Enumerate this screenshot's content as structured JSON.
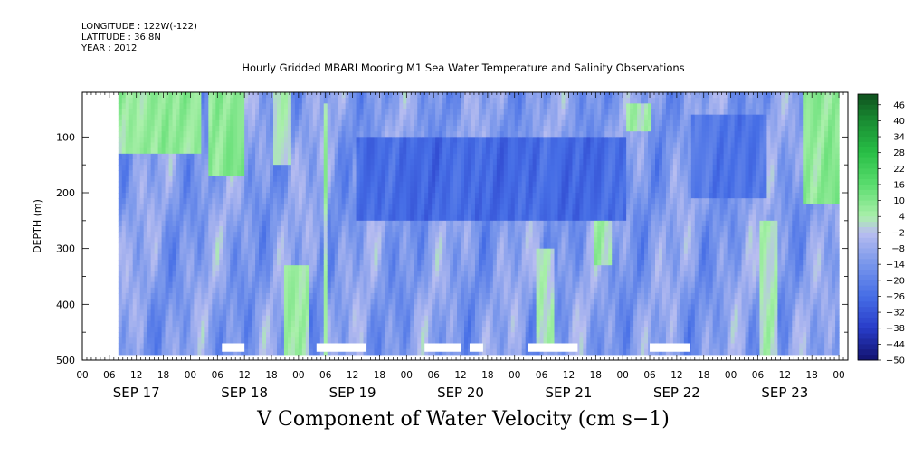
{
  "header": {
    "longitude": "LONGITUDE : 122W(-122)",
    "latitude": "LATITUDE : 36.8N",
    "year": "YEAR : 2012",
    "title": "Hourly Gridded MBARI Mooring M1 Sea Water Temperature and Salinity Observations"
  },
  "footer": {
    "label": "V Component of Water Velocity (cm s−1)"
  },
  "chart_data": {
    "type": "heatmap",
    "title": "Hourly Gridded MBARI Mooring M1 Sea Water Temperature and Salinity Observations",
    "variable": "V Component of Water Velocity (cm s−1)",
    "ylabel": "DEPTH (m)",
    "ylim": [
      500,
      20
    ],
    "y_inverted": true,
    "y_ticks": [
      100,
      200,
      300,
      400,
      500
    ],
    "x_range_hours": [
      0,
      170
    ],
    "x_hour_ticks": [
      "00",
      "06",
      "12",
      "18",
      "00",
      "06",
      "12",
      "18",
      "00",
      "06",
      "12",
      "18",
      "00",
      "06",
      "12",
      "18",
      "00",
      "06",
      "12",
      "18",
      "00",
      "06",
      "12",
      "18",
      "00",
      "06",
      "12",
      "18",
      "00"
    ],
    "x_day_labels": [
      "SEP 17",
      "SEP 18",
      "SEP 19",
      "SEP 20",
      "SEP 21",
      "SEP 22",
      "SEP 23"
    ],
    "data_extent": {
      "x_hours": [
        8,
        168
      ],
      "depth_m": [
        20,
        485
      ]
    },
    "gaps": [
      {
        "x_hours": [
          31,
          36
        ],
        "depth_m": [
          470,
          485
        ]
      },
      {
        "x_hours": [
          52,
          63
        ],
        "depth_m": [
          470,
          485
        ]
      },
      {
        "x_hours": [
          76,
          84
        ],
        "depth_m": [
          470,
          485
        ]
      },
      {
        "x_hours": [
          86,
          89
        ],
        "depth_m": [
          470,
          485
        ]
      },
      {
        "x_hours": [
          99,
          110
        ],
        "depth_m": [
          470,
          485
        ]
      },
      {
        "x_hours": [
          126,
          135
        ],
        "depth_m": [
          470,
          485
        ]
      }
    ],
    "colorbar": {
      "levels": [
        46,
        40,
        34,
        28,
        22,
        16,
        10,
        4,
        -2,
        -8,
        -14,
        -20,
        -26,
        -32,
        -38,
        -44,
        -50
      ],
      "min": -50,
      "max": 50
    },
    "features": [
      {
        "x_hours": [
          8,
          26
        ],
        "depth_m": [
          20,
          120
        ],
        "value_cm_s": 12
      },
      {
        "x_hours": [
          28,
          36
        ],
        "depth_m": [
          20,
          160
        ],
        "value_cm_s": 14
      },
      {
        "x_hours": [
          42,
          46
        ],
        "depth_m": [
          20,
          140
        ],
        "value_cm_s": 8
      },
      {
        "x_hours": [
          53,
          54
        ],
        "depth_m": [
          40,
          480
        ],
        "value_cm_s": 10
      },
      {
        "x_hours": [
          160,
          168
        ],
        "depth_m": [
          20,
          210
        ],
        "value_cm_s": 14
      },
      {
        "x_hours": [
          120,
          126
        ],
        "depth_m": [
          40,
          80
        ],
        "value_cm_s": 8
      },
      {
        "x_hours": [
          60,
          120
        ],
        "depth_m": [
          100,
          240
        ],
        "value_cm_s": -26
      },
      {
        "x_hours": [
          135,
          152
        ],
        "depth_m": [
          60,
          200
        ],
        "value_cm_s": -22
      },
      {
        "x_hours": [
          44,
          50
        ],
        "depth_m": [
          330,
          480
        ],
        "value_cm_s": 10
      },
      {
        "x_hours": [
          100,
          104
        ],
        "depth_m": [
          300,
          470
        ],
        "value_cm_s": 8
      },
      {
        "x_hours": [
          113,
          117
        ],
        "depth_m": [
          250,
          320
        ],
        "value_cm_s": 8
      },
      {
        "x_hours": [
          150,
          154
        ],
        "depth_m": [
          250,
          480
        ],
        "value_cm_s": 8
      }
    ]
  }
}
